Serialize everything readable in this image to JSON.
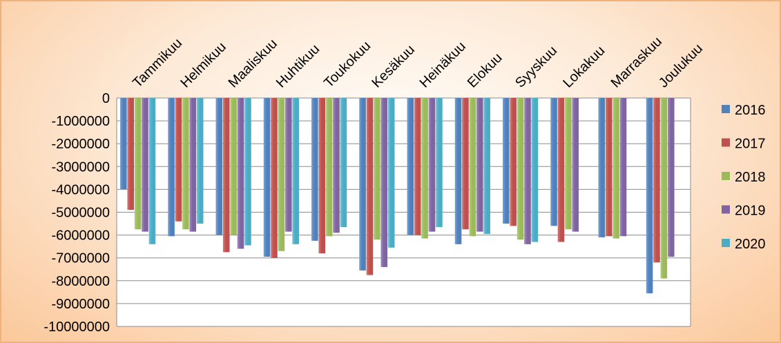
{
  "chart_data": {
    "type": "bar",
    "categories": [
      "Tammikuu",
      "Helmikuu",
      "Maaliskuu",
      "Huhtikuu",
      "Toukokuu",
      "Kesäkuu",
      "Heinäkuu",
      "Elokuu",
      "Syyskuu",
      "Lokakuu",
      "Marraskuu",
      "Joulukuu"
    ],
    "series": [
      {
        "name": "2016",
        "color": "#4f81bd",
        "values": [
          -4000000,
          -6050000,
          -6000000,
          -6950000,
          -6250000,
          -7550000,
          -6000000,
          -6400000,
          -5500000,
          -5600000,
          -6100000,
          -8550000
        ]
      },
      {
        "name": "2017",
        "color": "#c0504d",
        "values": [
          -4900000,
          -5400000,
          -6750000,
          -7000000,
          -6800000,
          -7750000,
          -6000000,
          -5750000,
          -5600000,
          -6300000,
          -6050000,
          -7200000
        ]
      },
      {
        "name": "2018",
        "color": "#9bbb59",
        "values": [
          -5750000,
          -5750000,
          -6000000,
          -6700000,
          -6050000,
          -6200000,
          -6150000,
          -6050000,
          -6200000,
          -5750000,
          -6150000,
          -7900000
        ]
      },
      {
        "name": "2019",
        "color": "#8064a2",
        "values": [
          -5850000,
          -5850000,
          -6600000,
          -5850000,
          -5900000,
          -7400000,
          -5850000,
          -5850000,
          -6400000,
          -5850000,
          -6050000,
          -6950000
        ]
      },
      {
        "name": "2020",
        "color": "#4bacc6",
        "values": [
          -6400000,
          -5500000,
          -6450000,
          -6400000,
          -5650000,
          -6550000,
          -5650000,
          -5950000,
          -6300000,
          null,
          null,
          null
        ]
      }
    ],
    "y_ticks": [
      "0",
      "-1000000",
      "-2000000",
      "-3000000",
      "-4000000",
      "-5000000",
      "-6000000",
      "-7000000",
      "-8000000",
      "-9000000",
      "-10000000"
    ],
    "ylim": [
      -10000000,
      0
    ],
    "grid": true,
    "legend_position": "right",
    "title": "",
    "xlabel": "",
    "ylabel": ""
  }
}
